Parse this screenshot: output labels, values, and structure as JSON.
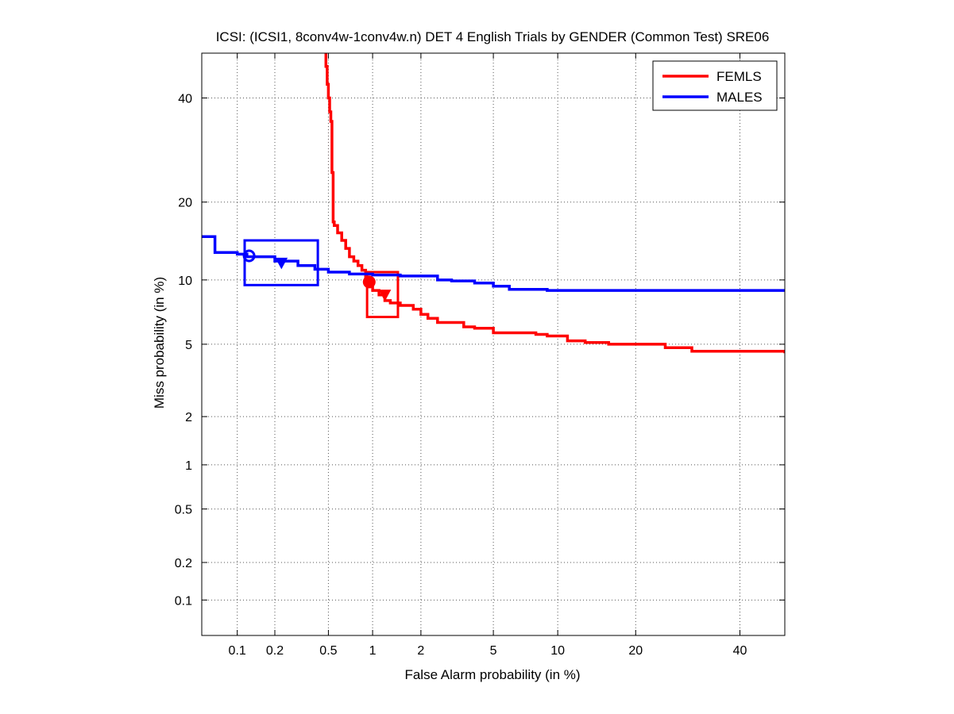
{
  "chart_data": {
    "type": "line",
    "scale": "normal-deviate (probit) on both axes",
    "title": "ICSI: (ICSI1, 8conv4w-1conv4w.n) DET 4 English Trials by GENDER (Common Test) SRE06",
    "xlabel": "False Alarm probability (in %)",
    "ylabel": "Miss probability (in %)",
    "xlim": [
      0.05,
      50
    ],
    "ylim": [
      0.05,
      50
    ],
    "x_ticks": [
      0.1,
      0.2,
      0.5,
      1,
      2,
      5,
      10,
      20,
      40
    ],
    "x_tick_labels": [
      "0.1",
      "0.2",
      "0.5",
      "1",
      "2",
      "5",
      "10",
      "20",
      "40"
    ],
    "y_ticks": [
      0.1,
      0.2,
      0.5,
      1,
      2,
      5,
      10,
      20,
      40
    ],
    "y_tick_labels": [
      "0.1",
      "0.2",
      "0.5",
      "1",
      "2",
      "5",
      "10",
      "20",
      "40"
    ],
    "grid": true,
    "legend_position": "top-right",
    "series": [
      {
        "name": "FEMLS",
        "color": "#ff0000",
        "x": [
          0.47,
          0.48,
          0.49,
          0.5,
          0.51,
          0.52,
          0.53,
          0.54,
          0.55,
          0.58,
          0.62,
          0.66,
          0.7,
          0.75,
          0.8,
          0.85,
          0.9,
          0.95,
          1.0,
          1.1,
          1.2,
          1.3,
          1.5,
          1.8,
          2.0,
          2.2,
          2.5,
          3.0,
          3.5,
          4.0,
          5.0,
          6.0,
          8.0,
          9.0,
          11.0,
          13.0,
          16.0,
          25.0,
          30.0,
          48.0,
          50.0
        ],
        "y": [
          50.0,
          47.0,
          43.0,
          40.0,
          37.0,
          35.0,
          25.0,
          17.0,
          16.5,
          15.5,
          14.5,
          13.5,
          12.5,
          12.0,
          11.5,
          11.0,
          10.0,
          9.5,
          9.0,
          8.6,
          8.1,
          7.9,
          7.7,
          7.4,
          7.0,
          6.7,
          6.4,
          6.4,
          6.1,
          6.0,
          5.7,
          5.7,
          5.6,
          5.5,
          5.2,
          5.1,
          5.0,
          4.8,
          4.6,
          4.6,
          4.5
        ],
        "operating_points": {
          "actual_decision": {
            "x": 0.95,
            "y": 9.8
          },
          "min_dcf": {
            "x": 1.2,
            "y": 8.6
          },
          "confidence_box": {
            "x": [
              0.92,
              1.45
            ],
            "y": [
              6.8,
              10.8
            ]
          }
        }
      },
      {
        "name": "MALES",
        "color": "#0000ff",
        "x": [
          0.05,
          0.06,
          0.065,
          0.07,
          0.1,
          0.12,
          0.2,
          0.3,
          0.4,
          0.5,
          0.7,
          1.0,
          1.5,
          2.0,
          2.5,
          3.0,
          4.0,
          5.0,
          6.0,
          8.0,
          9.0,
          20.0,
          50.0
        ],
        "y": [
          15.0,
          15.0,
          13.0,
          13.0,
          12.8,
          12.5,
          12.0,
          11.5,
          11.1,
          10.8,
          10.6,
          10.5,
          10.4,
          10.4,
          10.0,
          9.9,
          9.7,
          9.4,
          9.1,
          9.1,
          9.0,
          9.0,
          9.0
        ],
        "operating_points": {
          "actual_decision": {
            "x": 0.125,
            "y": 12.6
          },
          "min_dcf": {
            "x": 0.225,
            "y": 11.8
          },
          "confidence_box": {
            "x": [
              0.115,
              0.42
            ],
            "y": [
              9.5,
              14.5
            ]
          }
        }
      }
    ]
  }
}
